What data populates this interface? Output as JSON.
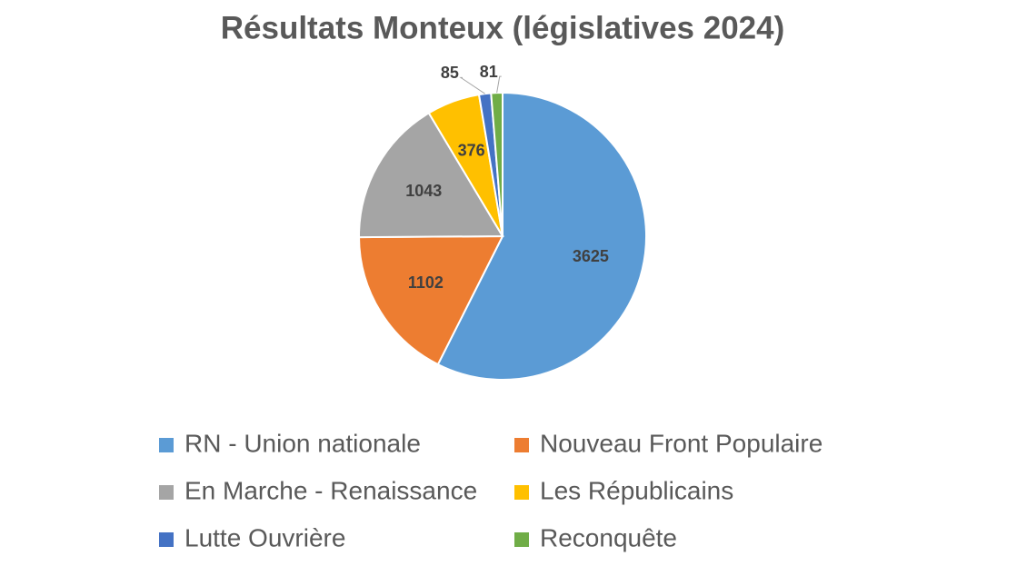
{
  "chart_data": {
    "type": "pie",
    "title": "Résultats Monteux (législatives 2024)",
    "categories": [
      "RN - Union nationale",
      "Nouveau Front Populaire",
      "En Marche - Renaissance",
      "Les Républicains",
      "Lutte Ouvrière",
      "Reconquête"
    ],
    "values": [
      3625,
      1102,
      1043,
      376,
      85,
      81
    ],
    "colors": [
      "#5b9bd5",
      "#ed7d31",
      "#a5a5a5",
      "#ffc000",
      "#4472c4",
      "#70ad47"
    ],
    "legend": "bottom"
  }
}
